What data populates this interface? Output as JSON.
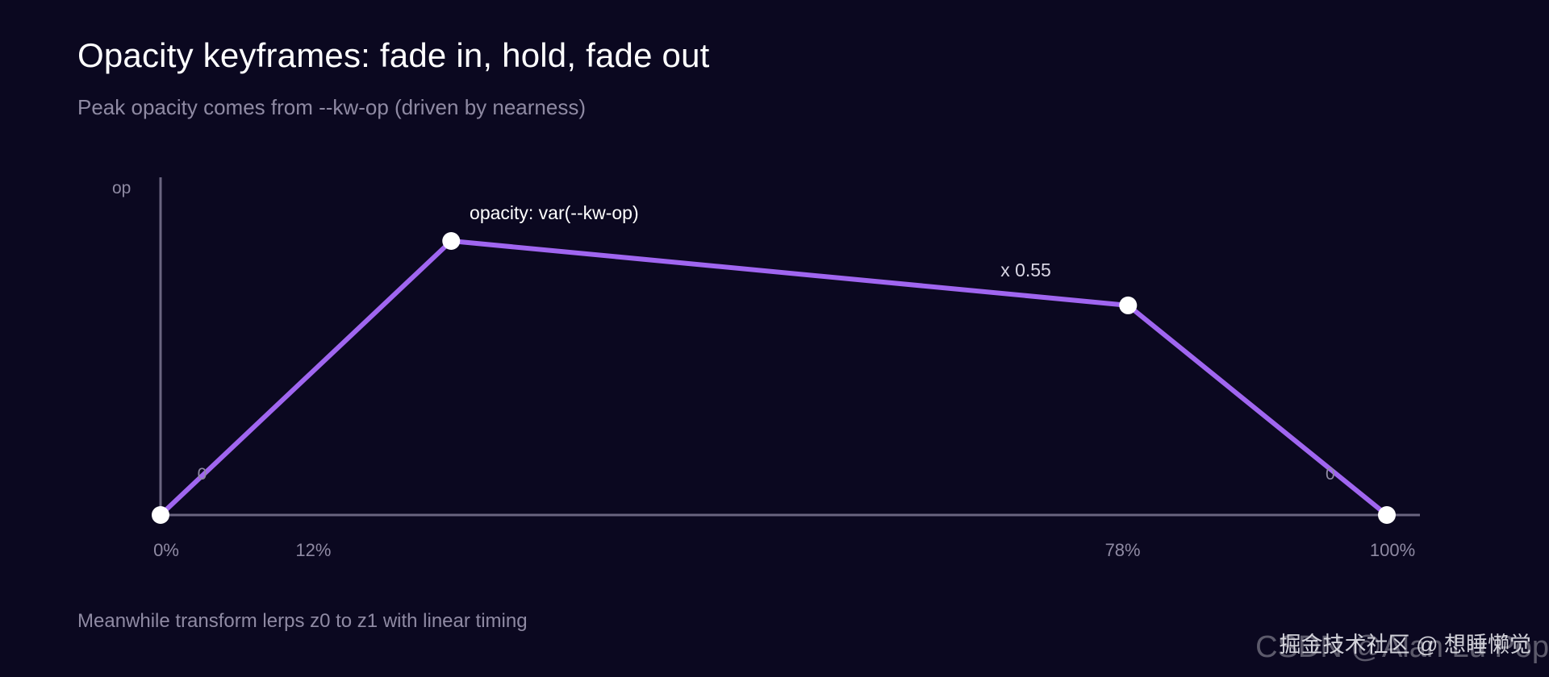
{
  "header": {
    "title": "Opacity keyframes: fade in, hold, fade out",
    "subtitle": "Peak opacity comes from --kw-op (driven by nearness)"
  },
  "footer": {
    "note": "Meanwhile transform lerps z0 to z1 with linear timing"
  },
  "watermark": {
    "back": "CSDN @Alan Lu Pop",
    "front": "掘金技术社区 @ 想睡懒觉"
  },
  "colors": {
    "background": "#0b0820",
    "line": "#a066f0",
    "point": "#ffffff",
    "axis": "#6a6580",
    "muted_text": "#8f8aa3",
    "label_text": "#ffffff"
  },
  "chart_data": {
    "type": "line",
    "ylabel": "op",
    "xlabel": "",
    "xlim": [
      0,
      100
    ],
    "ylim": [
      0,
      1.2
    ],
    "grid": false,
    "legend": "none",
    "x_ticks": [
      {
        "value": 0,
        "label": "0%"
      },
      {
        "value": 12,
        "label": "12%"
      },
      {
        "value": 78,
        "label": "78%"
      },
      {
        "value": 100,
        "label": "100%"
      }
    ],
    "series": [
      {
        "points": [
          {
            "x": 0,
            "y": 0
          },
          {
            "x": 23.7,
            "y": 1.0
          },
          {
            "x": 78.9,
            "y": 0.765
          },
          {
            "x": 100,
            "y": 0
          }
        ]
      }
    ],
    "annotations": [
      {
        "id": "start-zero",
        "text": "0",
        "x": 3,
        "y": 0.13
      },
      {
        "id": "peak-label",
        "text": "opacity: var(--kw-op)",
        "x": 25.2,
        "y": 1.08
      },
      {
        "id": "scale-label",
        "text": "x 0.55",
        "x": 68.5,
        "y": 0.87
      },
      {
        "id": "end-zero",
        "text": "0",
        "x": 95,
        "y": 0.13
      }
    ]
  }
}
